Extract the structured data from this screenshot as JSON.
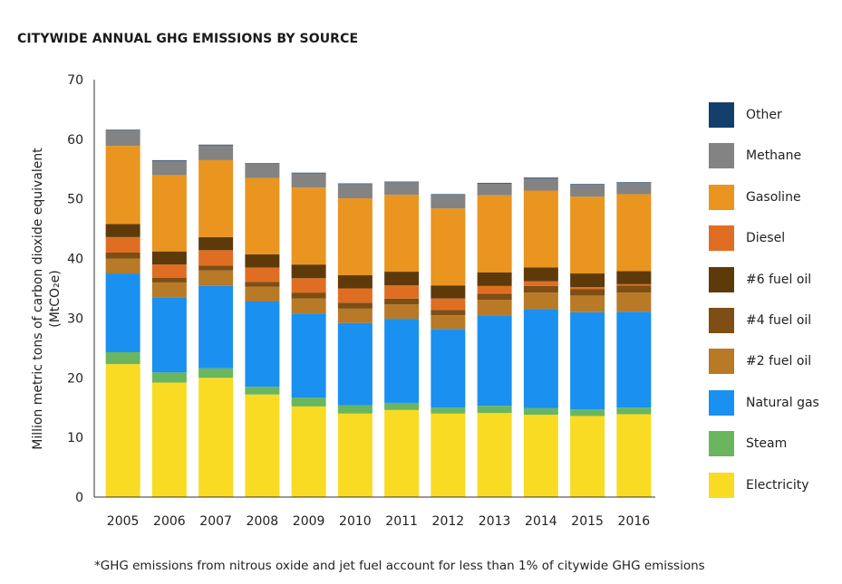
{
  "title": "CITYWIDE ANNUAL GHG EMISSIONS BY SOURCE",
  "footnote": "*GHG emissions from nitrous oxide and jet fuel account for less than 1% of citywide GHG emissions",
  "chart_data": {
    "type": "bar",
    "stacked": true,
    "title": "CITYWIDE ANNUAL GHG EMISSIONS BY SOURCE",
    "xlabel": "",
    "ylabel": "Million metric tons of carbon dioxide equivalent (MtCO₂e)",
    "ylabel_line1": "Million metric tons of carbon dioxide equivalent",
    "ylabel_line2": "(MtCO₂e)",
    "ylim": [
      0,
      70
    ],
    "yticks": [
      0,
      10,
      20,
      30,
      40,
      50,
      60,
      70
    ],
    "grid": false,
    "legend_position": "right",
    "categories": [
      "2005",
      "2006",
      "2007",
      "2008",
      "2009",
      "2010",
      "2011",
      "2012",
      "2013",
      "2014",
      "2015",
      "2016"
    ],
    "series": [
      {
        "name": "Electricity",
        "color": "#F9DB23",
        "values": [
          22.3,
          19.2,
          20.0,
          17.2,
          15.2,
          14.0,
          14.6,
          14.0,
          14.1,
          13.8,
          13.6,
          13.9
        ]
      },
      {
        "name": "Steam",
        "color": "#6AB65E",
        "values": [
          2.0,
          1.7,
          1.6,
          1.3,
          1.5,
          1.4,
          1.2,
          1.0,
          1.2,
          1.1,
          1.1,
          1.1
        ]
      },
      {
        "name": "Natural gas",
        "color": "#1A90F0",
        "values": [
          13.2,
          12.6,
          13.8,
          14.3,
          14.1,
          13.8,
          14.1,
          13.2,
          15.2,
          16.6,
          16.3,
          16.1
        ]
      },
      {
        "name": "#2 fuel oil",
        "color": "#B87A26",
        "values": [
          2.5,
          2.5,
          2.6,
          2.5,
          2.5,
          2.4,
          2.4,
          2.3,
          2.6,
          2.8,
          2.8,
          3.2
        ]
      },
      {
        "name": "#4 fuel oil",
        "color": "#7E4E14",
        "values": [
          1.0,
          0.8,
          0.8,
          0.8,
          1.0,
          1.0,
          1.0,
          0.9,
          1.0,
          1.1,
          1.1,
          1.2
        ]
      },
      {
        "name": "Diesel",
        "color": "#E06E22",
        "values": [
          2.6,
          2.2,
          2.6,
          2.4,
          2.4,
          2.4,
          2.2,
          1.9,
          1.3,
          0.8,
          0.3,
          0.2
        ]
      },
      {
        "name": "#6 fuel oil",
        "color": "#5E3A0A",
        "values": [
          2.2,
          2.2,
          2.2,
          2.2,
          2.3,
          2.2,
          2.3,
          2.2,
          2.3,
          2.3,
          2.3,
          2.2
        ]
      },
      {
        "name": "Gasoline",
        "color": "#E9951F",
        "values": [
          13.1,
          12.8,
          12.9,
          12.8,
          12.9,
          12.9,
          12.9,
          12.9,
          12.9,
          12.9,
          12.9,
          12.9
        ]
      },
      {
        "name": "Methane",
        "color": "#838383",
        "values": [
          2.6,
          2.4,
          2.5,
          2.4,
          2.4,
          2.4,
          2.1,
          2.3,
          2.0,
          2.1,
          2.0,
          1.9
        ]
      },
      {
        "name": "Other",
        "color": "#143E6B",
        "values": [
          0.1,
          0.1,
          0.1,
          0.1,
          0.1,
          0.1,
          0.1,
          0.1,
          0.1,
          0.1,
          0.1,
          0.1
        ]
      }
    ],
    "legend_order": [
      "Other",
      "Methane",
      "Gasoline",
      "Diesel",
      "#6 fuel oil",
      "#4 fuel oil",
      "#2 fuel oil",
      "Natural gas",
      "Steam",
      "Electricity"
    ]
  }
}
